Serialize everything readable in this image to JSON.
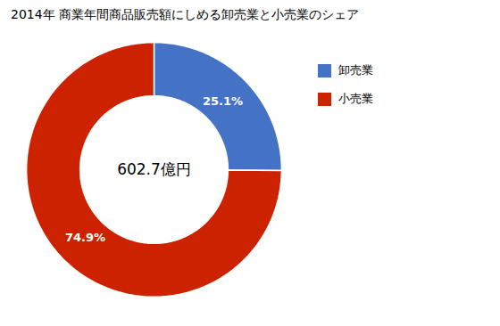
{
  "chart_data": {
    "type": "donut",
    "title": "2014年 商業年間商品販売額にしめる卸売業と小売業のシェア",
    "categories": [
      "卸売業",
      "小売業"
    ],
    "values": [
      25.1,
      74.9
    ],
    "value_labels": [
      "25.1%",
      "74.9%"
    ],
    "colors": [
      "#4472C4",
      "#CC2200"
    ],
    "annotations": [
      "602.7億円"
    ],
    "data_labels": true,
    "legend": "right"
  }
}
